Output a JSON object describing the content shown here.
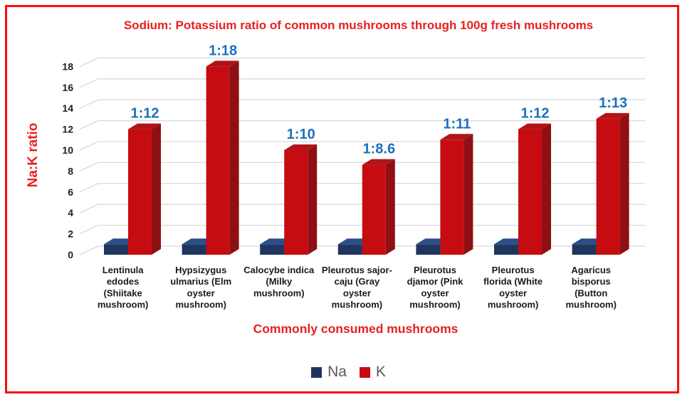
{
  "window": {
    "background": "#FFFFFF",
    "border_color": "#F90D0D"
  },
  "chart_data": {
    "type": "bar",
    "projection": "3d-clustered-column",
    "title": "Sodium: Potassium ratio of common mushrooms through 100g fresh mushrooms",
    "title_color": "#E82021",
    "xlabel": "Commonly consumed mushrooms",
    "ylabel": "Na:K ratio",
    "axis_title_color": "#E82021",
    "ylim": [
      0,
      18
    ],
    "ytick_step": 2,
    "yticks": [
      0,
      2,
      4,
      6,
      8,
      10,
      12,
      14,
      16,
      18
    ],
    "grid": true,
    "gridline_color": "#D9D9D9",
    "tick_label_color": "#1F1F1F",
    "category_label_color": "#1A1A1A",
    "legend_position": "bottom-center",
    "legend_text_color": "#5A5A5A",
    "categories": [
      "Lentinula edodes (Shiitake mushroom)",
      "Hypsizygus ulmarius (Elm oyster mushroom)",
      "Calocybe indica (Milky mushroom)",
      "Pleurotus sajor-caju (Gray oyster mushroom)",
      "Pleurotus djamor (Pink oyster mushroom)",
      "Pleurotus florida (White oyster mushroom)",
      "Agaricus bisporus (Button mushroom)"
    ],
    "category_lines": [
      [
        "Lentinula",
        "edodes",
        "(Shiitake",
        "mushroom)"
      ],
      [
        "Hypsizygus",
        "ulmarius (Elm",
        "oyster",
        "mushroom)"
      ],
      [
        "Calocybe indica",
        "(Milky",
        "mushroom)"
      ],
      [
        "Pleurotus sajor-",
        "caju (Gray",
        "oyster",
        "mushroom)"
      ],
      [
        "Pleurotus",
        "djamor (Pink",
        "oyster",
        "mushroom)"
      ],
      [
        "Pleurotus",
        "florida (White",
        "oyster",
        "mushroom)"
      ],
      [
        "Agaricus",
        "bisporus",
        "(Button",
        "mushroom)"
      ]
    ],
    "series": [
      {
        "name": "Na",
        "color": "#1E355F",
        "color_top": "#2C4F8A",
        "color_side": "#13233F",
        "values": [
          1,
          1,
          1,
          1,
          1,
          1,
          1
        ]
      },
      {
        "name": "K",
        "color": "#C60C11",
        "color_top": "#B01418",
        "color_side": "#8E1014",
        "values": [
          12,
          18,
          10,
          8.6,
          11,
          12,
          13
        ]
      }
    ],
    "bar_labels": {
      "above_series": "K",
      "color": "#1C70BE",
      "values": [
        "1:12",
        "1:18",
        "1:10",
        "1:8.6",
        "1:11",
        "1:12",
        "1:13"
      ]
    }
  }
}
